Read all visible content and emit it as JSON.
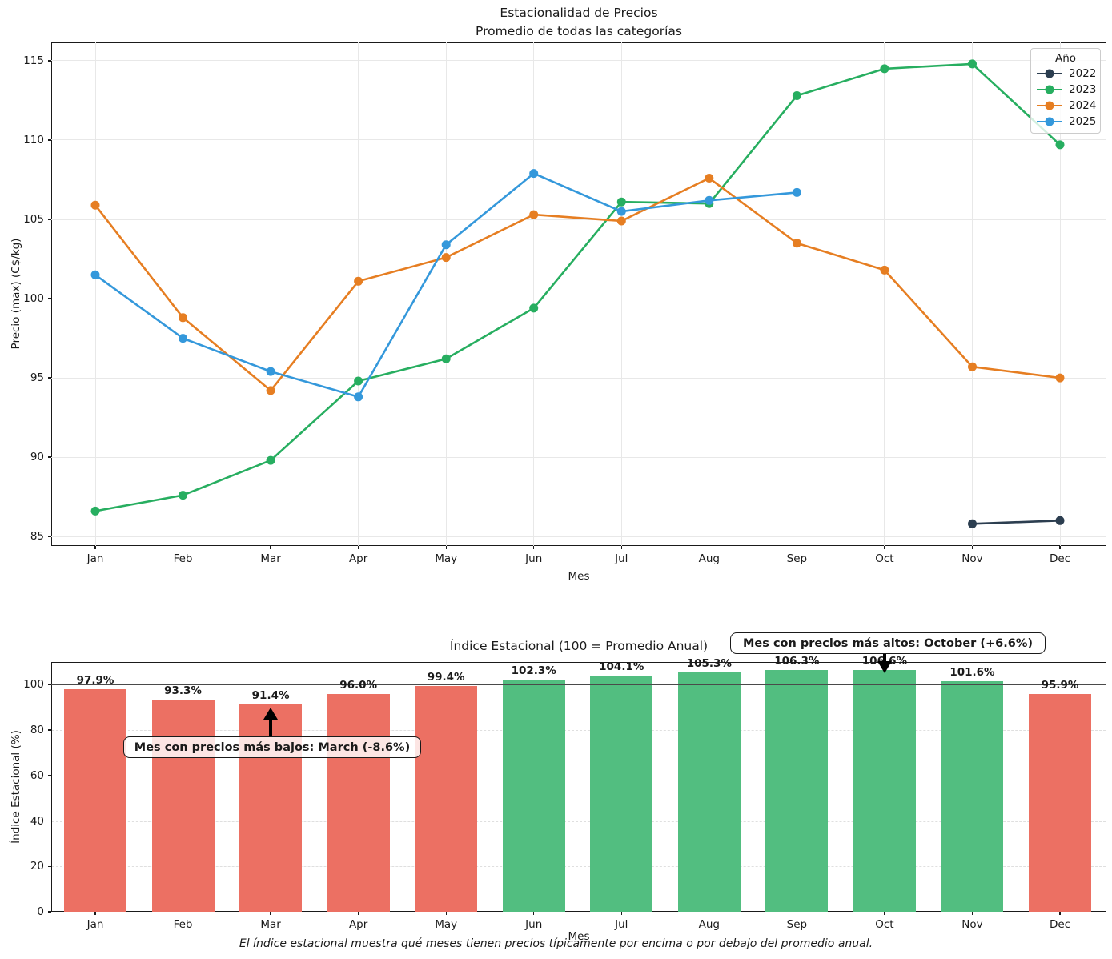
{
  "chart_data": [
    {
      "type": "line",
      "title": "Estacionalidad de Precios",
      "subtitle": "Promedio de todas las categorías",
      "xlabel": "Mes",
      "ylabel": "Precio (max) (C$/kg)",
      "legend_title": "Año",
      "legend_position": "upper right",
      "grid": true,
      "x": [
        "Jan",
        "Feb",
        "Mar",
        "Apr",
        "May",
        "Jun",
        "Jul",
        "Aug",
        "Sep",
        "Oct",
        "Nov",
        "Dec"
      ],
      "ylim": [
        84.4,
        116.16
      ],
      "yticks": [
        85,
        90,
        95,
        100,
        105,
        110,
        115
      ],
      "series": [
        {
          "name": "2022",
          "color": "#2c3e50",
          "values": [
            null,
            null,
            null,
            null,
            null,
            null,
            null,
            null,
            null,
            null,
            85.8,
            86.0
          ]
        },
        {
          "name": "2023",
          "color": "#27ae60",
          "values": [
            86.6,
            87.6,
            89.8,
            94.8,
            96.2,
            99.4,
            106.1,
            106.0,
            112.8,
            114.5,
            114.8,
            109.7
          ]
        },
        {
          "name": "2024",
          "color": "#e67e22",
          "values": [
            105.9,
            98.8,
            94.2,
            101.1,
            102.6,
            105.3,
            104.9,
            107.6,
            103.5,
            101.8,
            95.7,
            95.0
          ]
        },
        {
          "name": "2025",
          "color": "#3498db",
          "values": [
            101.5,
            97.5,
            95.4,
            93.8,
            103.4,
            107.9,
            105.5,
            106.2,
            106.7,
            null,
            null,
            null
          ]
        }
      ]
    },
    {
      "type": "bar",
      "title": "Índice Estacional (100 = Promedio Anual)",
      "xlabel": "Mes",
      "ylabel": "Índice Estacional (%)",
      "categories": [
        "Jan",
        "Feb",
        "Mar",
        "Apr",
        "May",
        "Jun",
        "Jul",
        "Aug",
        "Sep",
        "Oct",
        "Nov",
        "Dec"
      ],
      "values": [
        97.9,
        93.3,
        91.4,
        96.0,
        99.4,
        102.3,
        104.1,
        105.3,
        106.3,
        106.6,
        101.6,
        95.9
      ],
      "labels": [
        "97.9%",
        "93.3%",
        "91.4%",
        "96.0%",
        "99.4%",
        "102.3%",
        "104.1%",
        "105.3%",
        "106.3%",
        "106.6%",
        "101.6%",
        "95.9%"
      ],
      "ylim": [
        0,
        110
      ],
      "yticks": [
        0,
        20,
        40,
        60,
        80,
        100
      ],
      "baseline": 100,
      "bar_color_below": "#ec7063",
      "bar_color_above": "#52be80",
      "baseline_color": "#4a4a4a",
      "grid": true,
      "annotations": [
        {
          "text": "Mes con precios más bajos: March (-8.6%)",
          "target_month": "Mar",
          "direction": "up"
        },
        {
          "text": "Mes con precios más altos: October (+6.6%)",
          "target_month": "Oct",
          "direction": "down"
        }
      ],
      "caption": "El índice estacional muestra qué meses tienen precios típicamente por encima o por debajo del promedio anual."
    }
  ]
}
